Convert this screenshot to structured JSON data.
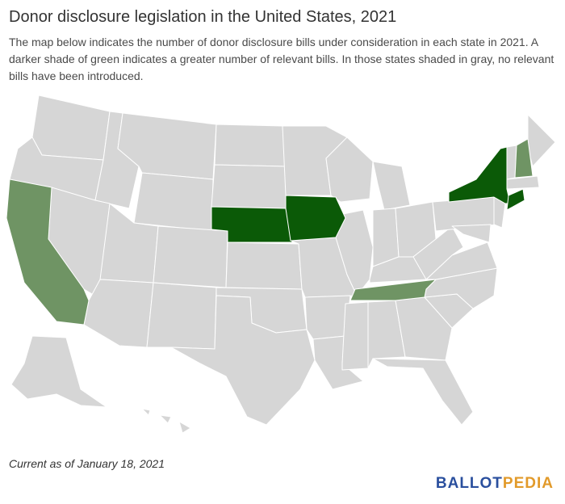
{
  "title": "Donor disclosure legislation in the United States, 2021",
  "subtitle": "The map below indicates the number of donor disclosure bills under consideration in each state in 2021. A darker shade of green indicates a greater number of relevant bills. In those states shaded in gray, no relevant bills have been introduced.",
  "footnote": "Current as of January 18, 2021",
  "logo": {
    "part1": "BALLOT",
    "part2": "PEDIA"
  },
  "colors": {
    "none": "#d6d6d6",
    "light_green": "#6f9464",
    "dark_green": "#0b5a07",
    "logo_blue": "#2a4f9e",
    "logo_orange": "#e29a2a"
  },
  "states_highlighted": {
    "dark_green": [
      "Nebraska",
      "Iowa",
      "New York",
      "Connecticut"
    ],
    "light_green": [
      "California",
      "Tennessee",
      "New Hampshire"
    ]
  }
}
